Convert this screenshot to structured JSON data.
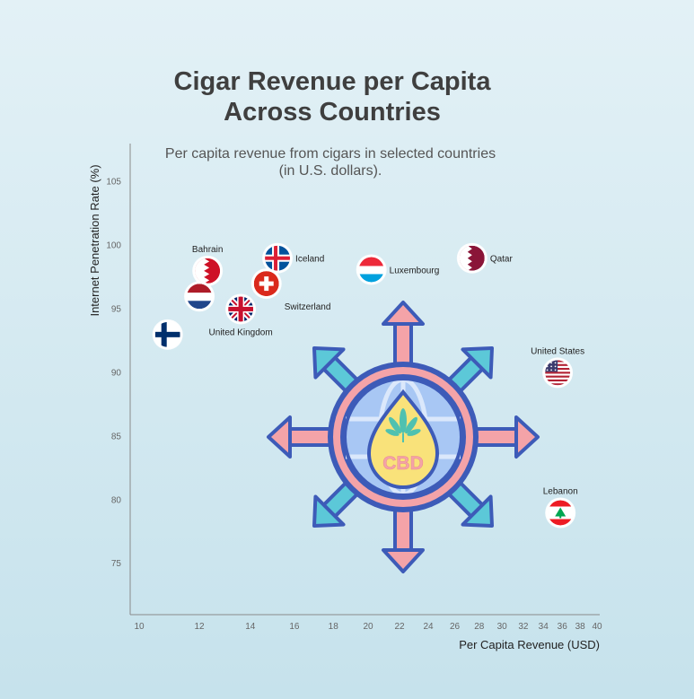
{
  "chart_data": {
    "type": "scatter",
    "title": [
      "Cigar Revenue per Capita",
      "Across Countries"
    ],
    "subtitle": [
      "Per capita revenue from cigars in selected countries",
      "(in U.S. dollars)."
    ],
    "xlabel": "Per Capita Revenue (USD)",
    "ylabel": "Internet Penetration Rate (%)",
    "x_scale": "log",
    "xlim": [
      10,
      40
    ],
    "ylim": [
      71,
      108
    ],
    "x_ticks": [
      10,
      12,
      14,
      16,
      18,
      20,
      22,
      24,
      26,
      28,
      30,
      32,
      34,
      36,
      38,
      40
    ],
    "y_ticks": [
      75,
      80,
      85,
      90,
      95,
      100,
      105
    ],
    "points": [
      {
        "name": "Bahrain",
        "x": 12.3,
        "y": 98.0,
        "flag": "bahrain-flag",
        "label": "Bahrain",
        "label_pos": "above"
      },
      {
        "name": "Iceland",
        "x": 15.2,
        "y": 99.0,
        "flag": "iceland-flag",
        "label": "Iceland",
        "label_pos": "right"
      },
      {
        "name": "Netherlands",
        "x": 12.0,
        "y": 96.0,
        "flag": "netherlands-flag",
        "label": "",
        "label_pos": "none"
      },
      {
        "name": "Switzerland",
        "x": 14.7,
        "y": 97.0,
        "flag": "switzerland-flag",
        "label": "Switzerland",
        "label_pos": "below-right"
      },
      {
        "name": "United Kingdom",
        "x": 13.6,
        "y": 95.0,
        "flag": "uk-flag",
        "label": "United Kingdom",
        "label_pos": "below"
      },
      {
        "name": "Finland",
        "x": 10.9,
        "y": 93.0,
        "flag": "finland-flag",
        "label": "",
        "label_pos": "none"
      },
      {
        "name": "Luxembourg",
        "x": 20.2,
        "y": 98.1,
        "flag": "luxembourg-flag",
        "label": "Luxembourg",
        "label_pos": "right"
      },
      {
        "name": "Qatar",
        "x": 27.4,
        "y": 99.0,
        "flag": "qatar-flag",
        "label": "Qatar",
        "label_pos": "right"
      },
      {
        "name": "United States",
        "x": 35.5,
        "y": 90.0,
        "flag": "us-flag",
        "label": "United States",
        "label_pos": "above"
      },
      {
        "name": "Lebanon",
        "x": 35.8,
        "y": 79.0,
        "flag": "lebanon-flag",
        "label": "Lebanon",
        "label_pos": "above"
      }
    ],
    "grid": false,
    "legend": "none"
  },
  "decoration": {
    "icon": "cbd-globe-arrows-icon",
    "icon_text": "CBD",
    "colors": {
      "arrow_pink": "#f4a3a8",
      "arrow_teal": "#5cc8d8",
      "outline": "#3d5bb8",
      "globe": "#a8c7f4",
      "drop": "#f9e27a",
      "leaf": "#4fc1b0"
    }
  }
}
